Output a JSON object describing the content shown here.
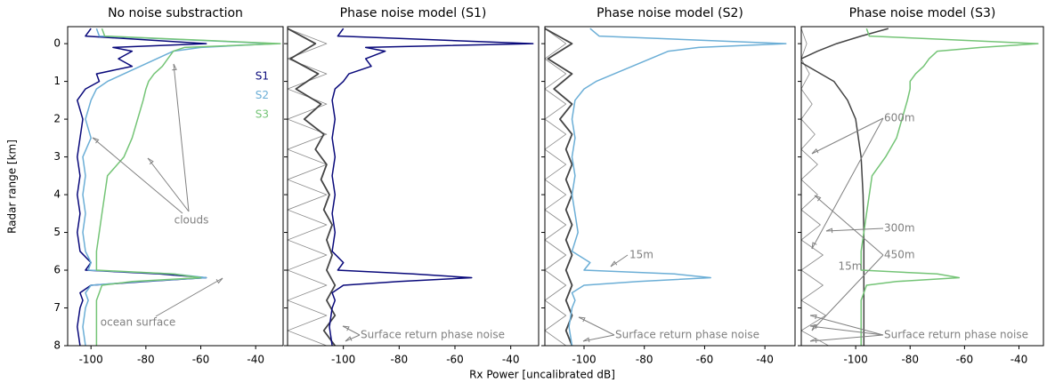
{
  "chart_data": [
    {
      "type": "line",
      "title": "No noise substraction",
      "ylabel": "Radar range [km]",
      "xlabel": "Rx Power [uncalibrated dB]",
      "xlim": [
        -108.5,
        -30
      ],
      "xticks": [
        -100,
        -80,
        -60,
        -40
      ],
      "ylim": [
        8,
        -0.45
      ],
      "yticks": [
        0,
        1,
        2,
        3,
        4,
        5,
        6,
        7,
        8
      ],
      "annotations": [
        "clouds",
        "ocean surface"
      ],
      "series": [
        {
          "name": "S1",
          "color": "#08087a",
          "width": 1.5,
          "y": [
            -0.4,
            -0.2,
            0,
            0.1,
            0.2,
            0.4,
            0.6,
            0.8,
            1.0,
            1.2,
            1.5,
            2,
            2.5,
            3,
            3.5,
            4,
            4.5,
            5,
            5.5,
            5.8,
            6.0,
            6.1,
            6.2,
            6.3,
            6.4,
            6.6,
            6.8,
            7,
            7.5,
            8
          ],
          "values": [
            -100,
            -102,
            -58,
            -92,
            -85,
            -90,
            -85,
            -98,
            -97,
            -102,
            -105,
            -103,
            -104,
            -105,
            -104,
            -105,
            -104,
            -105,
            -104,
            -100,
            -102,
            -75,
            -58,
            -80,
            -100,
            -104,
            -103,
            -104,
            -105,
            -104
          ]
        },
        {
          "name": "S2",
          "color": "#6baed6",
          "width": 1.5,
          "y": [
            -0.4,
            -0.2,
            0,
            0.1,
            0.2,
            0.4,
            0.6,
            0.8,
            1.0,
            1.2,
            1.5,
            2,
            2.5,
            3,
            3.5,
            4,
            4.5,
            5,
            5.5,
            5.8,
            6.0,
            6.1,
            6.2,
            6.3,
            6.4,
            6.6,
            6.8,
            7,
            7.5,
            8
          ],
          "values": [
            -98,
            -97,
            -33,
            -60,
            -70,
            -76,
            -82,
            -88,
            -94,
            -98,
            -100,
            -102,
            -100,
            -103,
            -102,
            -103,
            -102,
            -103,
            -102,
            -100,
            -101,
            -70,
            -58,
            -82,
            -100,
            -102,
            -101,
            -102,
            -103,
            -102
          ]
        },
        {
          "name": "S3",
          "color": "#74c476",
          "width": 1.5,
          "y": [
            -0.4,
            -0.2,
            0,
            0.1,
            0.2,
            0.4,
            0.6,
            0.8,
            1.0,
            1.2,
            1.5,
            2,
            2.5,
            3,
            3.5,
            4,
            4.5,
            5,
            5.5,
            5.8,
            6.0,
            6.1,
            6.2,
            6.3,
            6.4,
            6.6,
            6.8,
            7,
            7.5,
            8
          ],
          "values": [
            -96,
            -95,
            -31,
            -66,
            -70,
            -72,
            -74,
            -77,
            -79,
            -80,
            -81,
            -83,
            -85,
            -88,
            -94,
            -95,
            -96,
            -97,
            -98,
            -98,
            -98,
            -70,
            -60,
            -85,
            -96,
            -97,
            -98,
            -98,
            -98,
            -98
          ]
        }
      ]
    },
    {
      "type": "line",
      "title": "Phase noise model (S1)",
      "xlim": [
        -120,
        -30
      ],
      "xticks": [
        -100,
        -80,
        -60,
        -40
      ],
      "annotations": [
        "Surface return phase noise"
      ],
      "series": [
        {
          "color": "#888888",
          "width": 0.8,
          "y": [
            -0.4,
            0,
            0.4,
            0.8,
            1.2,
            1.6,
            2,
            2.4,
            2.8,
            3.2,
            3.6,
            4,
            4.4,
            4.8,
            5.2,
            5.6,
            6,
            6.4,
            6.8,
            7.2,
            7.6,
            8
          ],
          "values": [
            -120,
            -106,
            -120,
            -106,
            -120,
            -106,
            -120,
            -106,
            -120,
            -106,
            -120,
            -106,
            -120,
            -106,
            -120,
            -106,
            -120,
            -106,
            -120,
            -106,
            -120,
            -106
          ]
        },
        {
          "color": "#444444",
          "width": 1.8,
          "y": [
            -0.4,
            0,
            0.4,
            0.8,
            1.2,
            1.6,
            2,
            2.4,
            2.8,
            3.2,
            3.6,
            4,
            4.4,
            4.8,
            5.2,
            5.6,
            6,
            6.4,
            6.8,
            7.2,
            7.6,
            8
          ],
          "values": [
            -120,
            -110,
            -119,
            -109,
            -117,
            -108,
            -114,
            -107,
            -110,
            -106,
            -108,
            -105,
            -107,
            -104,
            -106,
            -104,
            -106,
            -103,
            -106,
            -103,
            -107,
            -103
          ]
        },
        {
          "color": "#08087a",
          "width": 1.5,
          "y": [
            -0.4,
            -0.2,
            0,
            0.1,
            0.2,
            0.4,
            0.6,
            0.8,
            1.0,
            1.2,
            1.5,
            2,
            2.5,
            3,
            3.5,
            4,
            4.5,
            5,
            5.5,
            5.8,
            6.0,
            6.1,
            6.2,
            6.3,
            6.4,
            6.6,
            6.8,
            7,
            7.5,
            8
          ],
          "values": [
            -100,
            -102,
            -32,
            -92,
            -85,
            -92,
            -90,
            -98,
            -100,
            -103,
            -104,
            -103,
            -104,
            -103,
            -104,
            -103,
            -104,
            -103,
            -104,
            -100,
            -102,
            -75,
            -54,
            -80,
            -100,
            -104,
            -103,
            -104,
            -105,
            -104
          ]
        }
      ]
    },
    {
      "type": "line",
      "title": "Phase noise model (S2)",
      "xlim": [
        -113,
        -30
      ],
      "xticks": [
        -100,
        -80,
        -60,
        -40
      ],
      "annotations": [
        "15m",
        "Surface return phase noise"
      ],
      "series": [
        {
          "color": "#888888",
          "width": 0.8,
          "y": [
            -0.4,
            0,
            0.4,
            0.8,
            1.2,
            1.6,
            2,
            2.4,
            2.8,
            3.2,
            3.6,
            4,
            4.4,
            4.8,
            5.2,
            5.6,
            6,
            6.4,
            6.8,
            7.2,
            7.6,
            8
          ],
          "values": [
            -113,
            -106,
            -113,
            -106,
            -113,
            -106,
            -113,
            -106,
            -113,
            -106,
            -113,
            -106,
            -113,
            -106,
            -113,
            -106,
            -113,
            -106,
            -113,
            -106,
            -113,
            -106
          ]
        },
        {
          "color": "#444444",
          "width": 1.8,
          "y": [
            -0.4,
            0,
            0.4,
            0.8,
            1.2,
            1.6,
            2,
            2.4,
            2.8,
            3.2,
            3.6,
            4,
            4.4,
            4.8,
            5.2,
            5.6,
            6,
            6.4,
            6.8,
            7.2,
            7.6,
            8
          ],
          "values": [
            -113,
            -104,
            -112,
            -104,
            -110,
            -104,
            -108,
            -104,
            -106,
            -104,
            -106,
            -104,
            -106,
            -104,
            -106,
            -104,
            -106,
            -104,
            -106,
            -104,
            -106,
            -104
          ]
        },
        {
          "color": "#6baed6",
          "width": 1.5,
          "y": [
            -0.4,
            -0.2,
            0,
            0.1,
            0.2,
            0.4,
            0.6,
            0.8,
            1.0,
            1.2,
            1.5,
            2,
            2.5,
            3,
            3.5,
            4,
            4.5,
            5,
            5.5,
            5.8,
            6.0,
            6.1,
            6.2,
            6.3,
            6.4,
            6.6,
            6.8,
            7,
            7.5,
            8
          ],
          "values": [
            -98,
            -95,
            -33,
            -62,
            -72,
            -78,
            -84,
            -90,
            -96,
            -100,
            -103,
            -104,
            -103,
            -104,
            -103,
            -104,
            -103,
            -102,
            -104,
            -98,
            -100,
            -70,
            -58,
            -82,
            -100,
            -104,
            -103,
            -104,
            -105,
            -104
          ]
        }
      ]
    },
    {
      "type": "line",
      "title": "Phase noise model (S3)",
      "xlim": [
        -120,
        -31
      ],
      "xticks": [
        -100,
        -80,
        -60,
        -40
      ],
      "annotations": [
        "600m",
        "300m",
        "450m",
        "15m",
        "Surface return phase noise"
      ],
      "series": [
        {
          "color": "#888888",
          "width": 0.8,
          "y": [
            -0.4,
            0,
            0.4,
            0.8,
            1.2,
            1.6,
            2,
            2.4,
            2.8,
            3.2,
            3.6,
            4,
            4.4,
            4.8,
            5.2,
            5.6,
            6,
            6.4,
            6.8,
            7.2,
            7.6,
            8
          ],
          "values": [
            -120,
            -118,
            -120,
            -117,
            -120,
            -116,
            -120,
            -115,
            -120,
            -114,
            -120,
            -114,
            -120,
            -113,
            -120,
            -112,
            -120,
            -112,
            -120,
            -111,
            -120,
            -110
          ]
        },
        {
          "color": "#444444",
          "width": 1.5,
          "y": [
            -0.4,
            -0.2,
            0,
            0.2,
            0.4,
            0.45,
            0.5,
            1,
            1.5,
            2,
            3,
            4,
            5,
            6,
            7,
            8
          ],
          "values": [
            -88,
            -98,
            -107,
            -114,
            -120,
            null,
            -120,
            -108,
            -103,
            -100,
            -98,
            -97.3,
            -97,
            -97,
            -97,
            -97
          ]
        },
        {
          "color": "#74c476",
          "width": 1.5,
          "y": [
            -0.4,
            -0.2,
            0,
            0.1,
            0.2,
            0.4,
            0.6,
            0.8,
            1.0,
            1.2,
            1.5,
            2,
            2.5,
            3,
            3.5,
            4,
            4.5,
            5,
            5.5,
            5.8,
            6.0,
            6.1,
            6.2,
            6.3,
            6.4,
            6.6,
            6.8,
            7,
            7.5,
            8
          ],
          "values": [
            -96,
            -95,
            -33,
            -54,
            -70,
            -73,
            -75,
            -78,
            -80,
            -80,
            -81,
            -83,
            -85,
            -89,
            -94,
            -95,
            -96,
            -97,
            -98,
            -98,
            -98,
            -70,
            -62,
            -85,
            -96,
            -97,
            -98,
            -98,
            -98,
            -98
          ]
        }
      ]
    }
  ]
}
